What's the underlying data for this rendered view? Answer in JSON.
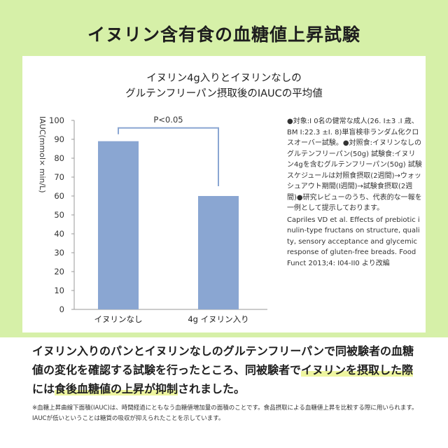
{
  "header": {
    "title": "イヌリン含有食の血糖値上昇試験"
  },
  "chart_data": {
    "type": "bar",
    "title_line1": "イヌリン4g入りとイヌリンなしの",
    "title_line2": "グルテンフリーパン摂取後のIAUCの平均値",
    "ylabel": "IAUC(mmol× min/L)",
    "xlabel": "",
    "ylim": [
      0,
      100
    ],
    "yticks": [
      0,
      10,
      20,
      30,
      40,
      50,
      60,
      70,
      80,
      90,
      100
    ],
    "categories": [
      "イヌリンなし",
      "4g イヌリン入り"
    ],
    "values": [
      89,
      60
    ],
    "bar_color": "#8aa6d2",
    "bracket_color": "#8aa6d2",
    "significance_label": "P<0.05",
    "grid": false
  },
  "notes": {
    "body": "●対象:I 0名の健常な成人(26. I±3 .I 歳、BM I:22.3 ±I. 8)単盲検非ランダム化クロスオーバー試験。●対照食:イヌリンなしのグルテンフリーパン(50g) 試験食:イヌリン4gを含むグルテンフリーパン(50g) 試験スケジュールは対照食摂取(2週間)→ウォッシュアウト期間(I週間)→試験食摂取(2週間)●研究レビューのうち、代表的な一報を一例として提示しております。",
    "reference": "Capriles VD et al. Effects of prebiotic inulin-type fructans on structure, quality, sensory acceptance and glycemic response of gluten-free breads. Food Funct 2013;4: I04-II0 より改編"
  },
  "summary": {
    "part1": "イヌリン入りのパンとイヌリンなしのグルテンフリーパンで同被験者の血糖値の変化を確認する試験を行ったところ、同被験者で",
    "hl1": "イヌリンを摂取した際",
    "part2": "には",
    "hl2": "食後血糖値の上昇が抑制",
    "part3": "されました。"
  },
  "footnote": "※血糖上昇曲線下面積(IAUC)は、時間経過にともなう血糖値増加量の面積のことです。食品摂取による血糖値上昇を比較する際に用いられます。IAUCが低いということは糖質の吸収が抑えられたことを示しています。",
  "colors": {
    "band": "#d6f0a8",
    "panel": "#ffffff",
    "bar": "#8aa6d2",
    "highlight": "#eef5a0"
  }
}
